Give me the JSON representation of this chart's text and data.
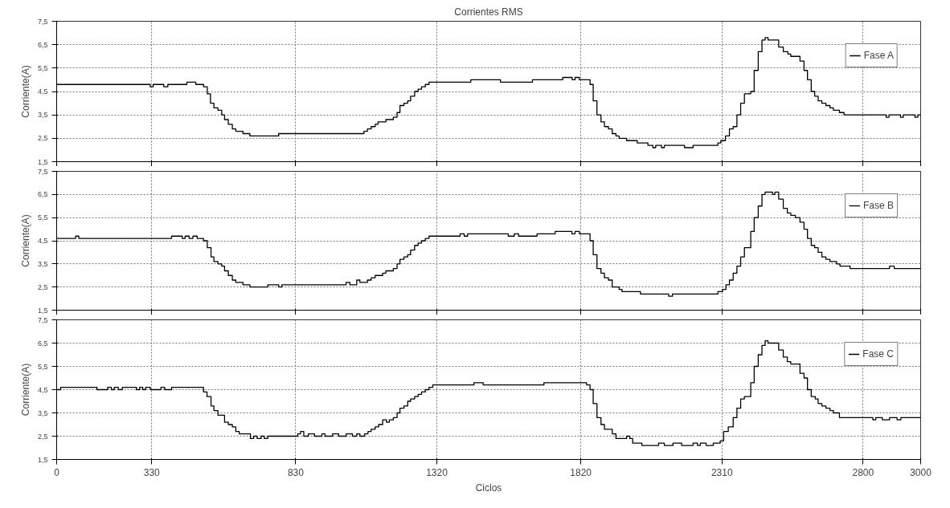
{
  "chart_data": [
    {
      "type": "step",
      "title": "Corrientes RMS",
      "ylabel": "Corriente(A)",
      "legend": "top right",
      "grid": true,
      "tick_labels": "y",
      "xlim": [
        0,
        3000
      ],
      "xticks": [
        0,
        330,
        830,
        1320,
        1820,
        2310,
        2800,
        3000
      ],
      "ylim": [
        1.5,
        7.5
      ],
      "yticks": [
        {
          "value": 1.5,
          "label": "1,5"
        },
        {
          "value": 2.5,
          "label": "2,5"
        },
        {
          "value": 3.5,
          "label": "3,5"
        },
        {
          "value": 4.5,
          "label": "4,5"
        },
        {
          "value": 5.5,
          "label": "5,5"
        },
        {
          "value": 6.5,
          "label": "6,5"
        },
        {
          "value": 7.5,
          "label": "7,5"
        }
      ],
      "series": [
        {
          "name": "Fase A",
          "color": "#000000",
          "x": [
            0,
            325,
            335,
            372,
            386,
            452,
            483,
            510,
            523,
            534,
            546,
            560,
            573,
            583,
            596,
            610,
            622,
            647,
            671,
            771,
            1067,
            1079,
            1092,
            1106,
            1116,
            1143,
            1169,
            1182,
            1192,
            1206,
            1219,
            1229,
            1243,
            1255,
            1267,
            1280,
            1293,
            1438,
            1541,
            1652,
            1757,
            1790,
            1800,
            1815,
            1852,
            1863,
            1876,
            1890,
            1902,
            1916,
            1929,
            1942,
            1953,
            1979,
            2016,
            2053,
            2070,
            2080,
            2100,
            2110,
            2180,
            2210,
            2296,
            2306,
            2322,
            2336,
            2349,
            2362,
            2375,
            2388,
            2410,
            2422,
            2436,
            2449,
            2460,
            2470,
            2507,
            2523,
            2539,
            2549,
            2581,
            2595,
            2607,
            2620,
            2632,
            2644,
            2657,
            2671,
            2685,
            2697,
            2718,
            2734,
            2880,
            2890,
            2930,
            2940,
            2980,
            2990,
            3000
          ],
          "values": [
            4.8,
            4.7,
            4.8,
            4.7,
            4.8,
            4.9,
            4.8,
            4.7,
            4.4,
            4.0,
            3.8,
            3.7,
            3.5,
            3.3,
            3.1,
            2.9,
            2.8,
            2.7,
            2.6,
            2.7,
            2.8,
            2.9,
            3.0,
            3.1,
            3.2,
            3.3,
            3.4,
            3.6,
            3.9,
            4.0,
            4.1,
            4.3,
            4.5,
            4.6,
            4.7,
            4.8,
            4.9,
            5.0,
            4.9,
            5.0,
            5.1,
            5.0,
            5.1,
            5.0,
            4.8,
            4.1,
            3.5,
            3.2,
            3.0,
            2.9,
            2.7,
            2.6,
            2.5,
            2.4,
            2.3,
            2.2,
            2.1,
            2.2,
            2.1,
            2.2,
            2.1,
            2.2,
            2.3,
            2.4,
            2.6,
            2.9,
            3.0,
            3.5,
            4.0,
            4.4,
            4.5,
            5.4,
            6.2,
            6.7,
            6.8,
            6.7,
            6.4,
            6.2,
            6.1,
            6.0,
            5.8,
            5.4,
            5.0,
            4.5,
            4.3,
            4.1,
            4.0,
            3.9,
            3.8,
            3.7,
            3.6,
            3.5,
            3.4,
            3.5,
            3.4,
            3.5,
            3.4,
            3.5,
            3.5
          ]
        }
      ]
    },
    {
      "type": "step",
      "ylabel": "Corriente(A)",
      "legend": "top right",
      "grid": true,
      "tick_labels": "y",
      "xlim": [
        0,
        3000
      ],
      "xticks": [
        0,
        330,
        830,
        1320,
        1820,
        2310,
        2800,
        3000
      ],
      "ylim": [
        1.5,
        7.5
      ],
      "yticks": [
        {
          "value": 1.5,
          "label": "1,5"
        },
        {
          "value": 2.5,
          "label": "2,5"
        },
        {
          "value": 3.5,
          "label": "3,5"
        },
        {
          "value": 4.5,
          "label": "4,5"
        },
        {
          "value": 5.5,
          "label": "5,5"
        },
        {
          "value": 6.5,
          "label": "6,5"
        },
        {
          "value": 7.5,
          "label": "7,5"
        }
      ],
      "series": [
        {
          "name": "Fase B",
          "color": "#000000",
          "x": [
            0,
            66,
            77,
            399,
            436,
            446,
            460,
            473,
            488,
            510,
            523,
            536,
            546,
            560,
            573,
            583,
            596,
            610,
            622,
            647,
            671,
            733,
            771,
            782,
            1005,
            1018,
            1042,
            1053,
            1079,
            1092,
            1106,
            1132,
            1143,
            1169,
            1182,
            1192,
            1206,
            1219,
            1229,
            1243,
            1255,
            1267,
            1280,
            1293,
            1401,
            1415,
            1427,
            1568,
            1589,
            1604,
            1668,
            1731,
            1789,
            1800,
            1815,
            1852,
            1863,
            1876,
            1890,
            1902,
            1916,
            1929,
            1953,
            1963,
            2027,
            2125,
            2138,
            2296,
            2312,
            2324,
            2336,
            2349,
            2362,
            2375,
            2388,
            2410,
            2422,
            2436,
            2449,
            2460,
            2486,
            2494,
            2507,
            2523,
            2537,
            2549,
            2565,
            2581,
            2595,
            2607,
            2620,
            2632,
            2644,
            2657,
            2671,
            2685,
            2708,
            2720,
            2755,
            2892,
            2908,
            3000
          ],
          "values": [
            4.6,
            4.7,
            4.6,
            4.7,
            4.6,
            4.7,
            4.6,
            4.7,
            4.6,
            4.5,
            4.2,
            3.8,
            3.6,
            3.5,
            3.4,
            3.2,
            3.0,
            2.8,
            2.7,
            2.6,
            2.5,
            2.6,
            2.5,
            2.6,
            2.7,
            2.6,
            2.8,
            2.7,
            2.8,
            2.9,
            3.0,
            3.1,
            3.2,
            3.3,
            3.5,
            3.7,
            3.8,
            3.9,
            4.1,
            4.3,
            4.4,
            4.5,
            4.6,
            4.7,
            4.8,
            4.7,
            4.8,
            4.7,
            4.8,
            4.7,
            4.8,
            4.9,
            4.8,
            4.9,
            4.8,
            4.5,
            3.9,
            3.3,
            3.1,
            2.9,
            2.8,
            2.5,
            2.4,
            2.3,
            2.2,
            2.1,
            2.2,
            2.3,
            2.4,
            2.6,
            2.8,
            3.1,
            3.4,
            3.8,
            4.2,
            4.9,
            5.5,
            6.0,
            6.5,
            6.6,
            6.5,
            6.6,
            6.3,
            5.9,
            5.7,
            5.6,
            5.5,
            5.3,
            5.0,
            4.6,
            4.3,
            4.2,
            4.0,
            3.8,
            3.7,
            3.6,
            3.5,
            3.4,
            3.3,
            3.4,
            3.3,
            3.3
          ]
        }
      ]
    },
    {
      "type": "step",
      "xlabel": "Ciclos",
      "ylabel": "Corriente(A)",
      "legend": "top right",
      "grid": true,
      "xlim": [
        0,
        3000
      ],
      "xticks": [
        0,
        330,
        830,
        1320,
        1820,
        2310,
        2800,
        3000
      ],
      "ylim": [
        1.5,
        7.5
      ],
      "yticks": [
        {
          "value": 1.5,
          "label": "1,5"
        },
        {
          "value": 2.5,
          "label": "2,5"
        },
        {
          "value": 3.5,
          "label": "3,5"
        },
        {
          "value": 4.5,
          "label": "4,5"
        },
        {
          "value": 5.5,
          "label": "5,5"
        },
        {
          "value": 6.5,
          "label": "6,5"
        },
        {
          "value": 7.5,
          "label": "7,5"
        }
      ],
      "series": [
        {
          "name": "Fase C",
          "color": "#000000",
          "x": [
            0,
            14,
            140,
            177,
            190,
            200,
            214,
            228,
            277,
            288,
            299,
            309,
            325,
            362,
            375,
            399,
            510,
            522,
            536,
            546,
            560,
            583,
            596,
            610,
            622,
            634,
            673,
            684,
            696,
            710,
            721,
            733,
            837,
            847,
            858,
            874,
            895,
            921,
            932,
            958,
            979,
            1005,
            1027,
            1042,
            1053,
            1069,
            1081,
            1092,
            1106,
            1118,
            1132,
            1145,
            1155,
            1169,
            1182,
            1192,
            1206,
            1219,
            1229,
            1243,
            1255,
            1267,
            1280,
            1293,
            1306,
            1449,
            1481,
            1692,
            1840,
            1852,
            1863,
            1876,
            1890,
            1902,
            1929,
            1942,
            1969,
            1979,
            1990,
            2000,
            2032,
            2048,
            2090,
            2110,
            2140,
            2170,
            2210,
            2225,
            2235,
            2255,
            2280,
            2304,
            2316,
            2332,
            2349,
            2362,
            2375,
            2388,
            2410,
            2422,
            2436,
            2449,
            2460,
            2470,
            2507,
            2523,
            2537,
            2549,
            2581,
            2595,
            2607,
            2620,
            2634,
            2644,
            2657,
            2671,
            2685,
            2697,
            2718,
            2834,
            2844,
            2867,
            2892,
            2918,
            2931,
            3000
          ],
          "values": [
            4.5,
            4.6,
            4.5,
            4.6,
            4.5,
            4.6,
            4.5,
            4.6,
            4.5,
            4.6,
            4.5,
            4.6,
            4.5,
            4.6,
            4.5,
            4.6,
            4.4,
            4.2,
            3.8,
            3.6,
            3.4,
            3.1,
            3.0,
            2.9,
            2.7,
            2.6,
            2.4,
            2.5,
            2.4,
            2.5,
            2.4,
            2.5,
            2.6,
            2.7,
            2.5,
            2.6,
            2.5,
            2.6,
            2.5,
            2.6,
            2.5,
            2.6,
            2.5,
            2.6,
            2.5,
            2.6,
            2.7,
            2.8,
            2.9,
            3.0,
            3.2,
            3.1,
            3.2,
            3.3,
            3.5,
            3.7,
            3.8,
            4.0,
            4.1,
            4.2,
            4.3,
            4.4,
            4.5,
            4.6,
            4.7,
            4.8,
            4.7,
            4.8,
            4.7,
            4.5,
            3.9,
            3.3,
            3.0,
            2.8,
            2.6,
            2.4,
            2.4,
            2.5,
            2.4,
            2.2,
            2.1,
            2.1,
            2.2,
            2.1,
            2.2,
            2.1,
            2.2,
            2.1,
            2.2,
            2.1,
            2.2,
            2.3,
            2.7,
            2.9,
            3.3,
            3.7,
            4.1,
            4.2,
            4.8,
            5.5,
            6.0,
            6.4,
            6.6,
            6.5,
            6.2,
            5.9,
            5.7,
            5.6,
            5.2,
            5.0,
            4.5,
            4.2,
            4.1,
            3.9,
            3.8,
            3.7,
            3.6,
            3.5,
            3.3,
            3.2,
            3.3,
            3.2,
            3.3,
            3.2,
            3.3,
            3.3
          ]
        }
      ]
    }
  ]
}
